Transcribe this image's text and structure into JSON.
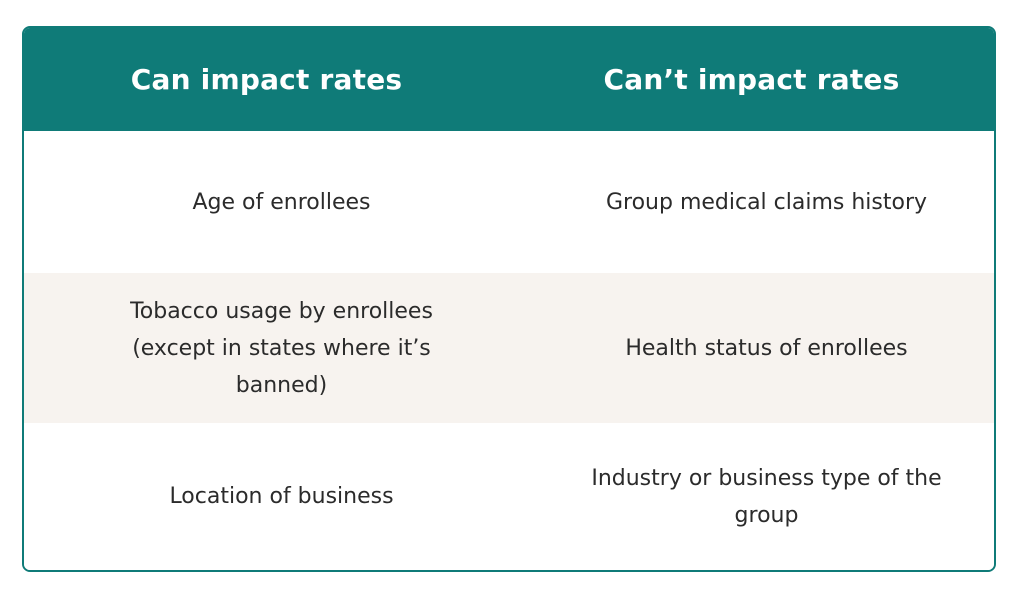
{
  "table": {
    "headers": [
      "Can impact rates",
      "Can’t impact rates"
    ],
    "rows": [
      [
        "Age of enrollees",
        "Group medical claims history"
      ],
      [
        "Tobacco usage by enrollees (except in states where it’s banned)",
        "Health status of enrollees"
      ],
      [
        "Location of business",
        "Industry or business type of the group"
      ]
    ]
  },
  "colors": {
    "header_bg": "#0f7b78",
    "header_text": "#ffffff",
    "alt_row_bg": "#f7f3ef",
    "body_text": "#2b2b2b"
  }
}
